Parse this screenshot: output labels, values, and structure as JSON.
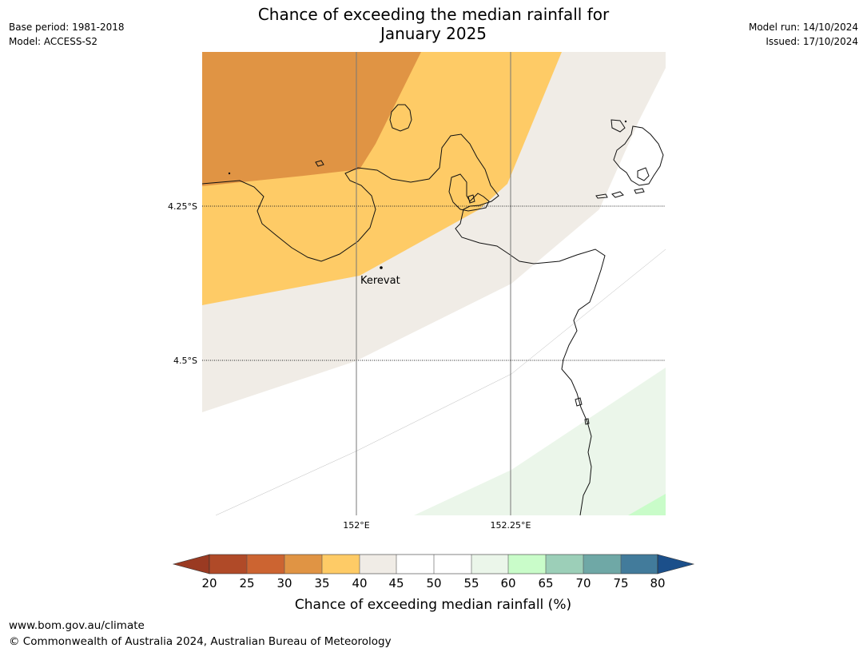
{
  "title": {
    "line1": "Chance of exceeding the median rainfall for",
    "line2": "January 2025"
  },
  "meta_left": {
    "base_period": "Base period: 1981-2018",
    "model": "Model: ACCESS-S2"
  },
  "meta_right": {
    "model_run": "Model run: 14/10/2024",
    "issued": "Issued: 17/10/2024"
  },
  "map": {
    "place_label": "Kerevat",
    "lat_labels": [
      "4.25°S",
      "4.5°S"
    ],
    "lon_labels": [
      "152°E",
      "152.25°E"
    ]
  },
  "colorbar": {
    "tick_labels": [
      "20",
      "25",
      "30",
      "35",
      "40",
      "45",
      "50",
      "55",
      "60",
      "65",
      "70",
      "75",
      "80"
    ],
    "label": "Chance of exceeding median rainfall (%)",
    "colors": {
      "below_20": "#9a3a22",
      "20-25": "#b04a28",
      "25-30": "#cc6431",
      "30-35": "#e09444",
      "35-40": "#fecb66",
      "40-45": "#f0ece6",
      "45-50": "#ffffff",
      "50-55": "#ffffff",
      "55-60": "#ebf6ea",
      "60-65": "#c9fcc9",
      "65-70": "#9ccfb8",
      "70-75": "#6fa8a6",
      "75-80": "#427b9b",
      "above_80": "#1b4f8a"
    }
  },
  "footer": {
    "url": "www.bom.gov.au/climate",
    "copyright": "© Commonwealth of Australia 2024, Australian Bureau of Meteorology"
  }
}
